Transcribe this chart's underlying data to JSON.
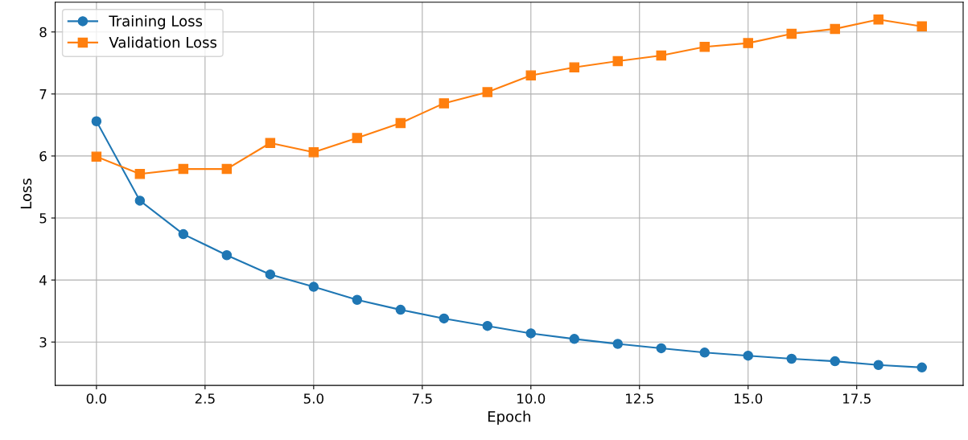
{
  "chart_data": {
    "type": "line",
    "xlabel": "Epoch",
    "ylabel": "Loss",
    "x": [
      0,
      1,
      2,
      3,
      4,
      5,
      6,
      7,
      8,
      9,
      10,
      11,
      12,
      13,
      14,
      15,
      16,
      17,
      18,
      19
    ],
    "series": [
      {
        "name": "Training Loss",
        "color": "#1f77b4",
        "marker": "circle",
        "values": [
          6.56,
          5.28,
          4.74,
          4.4,
          4.09,
          3.89,
          3.68,
          3.52,
          3.38,
          3.26,
          3.14,
          3.05,
          2.97,
          2.9,
          2.83,
          2.78,
          2.73,
          2.69,
          2.63,
          2.59
        ]
      },
      {
        "name": "Validation Loss",
        "color": "#ff7f0e",
        "marker": "square",
        "values": [
          5.99,
          5.71,
          5.79,
          5.79,
          6.21,
          6.06,
          6.29,
          6.53,
          6.85,
          7.03,
          7.3,
          7.43,
          7.53,
          7.62,
          7.76,
          7.82,
          7.97,
          8.05,
          8.2,
          8.09
        ]
      }
    ],
    "xlim": [
      -0.95,
      19.95
    ],
    "xticks": [
      {
        "value": 0,
        "label": "0.0"
      },
      {
        "value": 2.5,
        "label": "2.5"
      },
      {
        "value": 5,
        "label": "5.0"
      },
      {
        "value": 7.5,
        "label": "7.5"
      },
      {
        "value": 10,
        "label": "10.0"
      },
      {
        "value": 12.5,
        "label": "12.5"
      },
      {
        "value": 15,
        "label": "15.0"
      },
      {
        "value": 17.5,
        "label": "17.5"
      }
    ],
    "ylim": [
      2.3,
      8.48
    ],
    "yticks": [
      3,
      4,
      5,
      6,
      7,
      8
    ],
    "grid": true,
    "legend": "top left",
    "line_style": "solid"
  }
}
